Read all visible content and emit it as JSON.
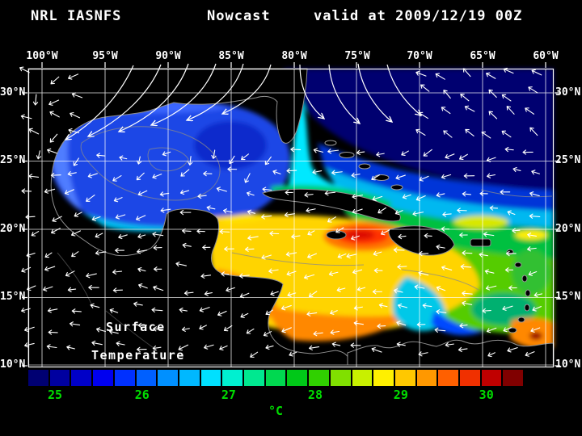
{
  "header": {
    "left": "NRL IASNFS",
    "center": "Nowcast",
    "right": "valid at 2009/12/19 00Z"
  },
  "axes": {
    "lon_labels": [
      "100°W",
      "95°W",
      "90°W",
      "85°W",
      "80°W",
      "75°W",
      "70°W",
      "65°W",
      "60°W"
    ],
    "lat_labels": [
      "30°N",
      "25°N",
      "20°N",
      "15°N",
      "10°N"
    ]
  },
  "map": {
    "annotation_line1": "Surface",
    "annotation_line2": "Temperature"
  },
  "colorbar": {
    "labels": [
      "25",
      "26",
      "27",
      "28",
      "29",
      "30"
    ],
    "label_positions_pct": [
      5.4,
      23,
      40.5,
      58,
      75.3,
      92.6
    ],
    "unit": "°C",
    "label_color": "#00dd00",
    "colors": [
      "#000072",
      "#0000a0",
      "#0000c8",
      "#0000f0",
      "#0030ff",
      "#0060ff",
      "#0090ff",
      "#00b8ff",
      "#00e0ff",
      "#00f0d0",
      "#00e890",
      "#00d850",
      "#00c818",
      "#30d000",
      "#80e000",
      "#c8f000",
      "#fff000",
      "#ffc800",
      "#ff9800",
      "#ff6000",
      "#f03000",
      "#c00000",
      "#800000"
    ]
  }
}
